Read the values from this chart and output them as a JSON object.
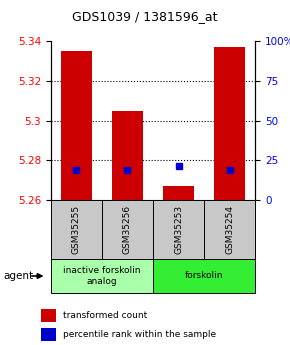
{
  "title": "GDS1039 / 1381596_at",
  "samples": [
    "GSM35255",
    "GSM35256",
    "GSM35253",
    "GSM35254"
  ],
  "bar_values": [
    5.335,
    5.305,
    5.267,
    5.337
  ],
  "bar_base": 5.26,
  "percentile_values": [
    5.275,
    5.275,
    5.277,
    5.275
  ],
  "ylim": [
    5.26,
    5.34
  ],
  "yticks_left": [
    5.26,
    5.28,
    5.3,
    5.32,
    5.34
  ],
  "yticks_right": [
    0,
    25,
    50,
    75,
    100
  ],
  "ytick_right_labels": [
    "0",
    "25",
    "50",
    "75",
    "100%"
  ],
  "bar_color": "#cc0000",
  "percentile_color": "#0000cc",
  "groups": [
    {
      "label": "inactive forskolin\nanalog",
      "span": [
        0,
        2
      ],
      "color": "#aaffaa"
    },
    {
      "label": "forskolin",
      "span": [
        2,
        4
      ],
      "color": "#33ee33"
    }
  ],
  "agent_label": "agent",
  "legend_red_label": "transformed count",
  "legend_blue_label": "percentile rank within the sample",
  "background_color": "#ffffff",
  "plot_bg": "#ffffff",
  "bar_width": 0.6,
  "sample_bg_color": "#c8c8c8",
  "grid_color": "#000000"
}
